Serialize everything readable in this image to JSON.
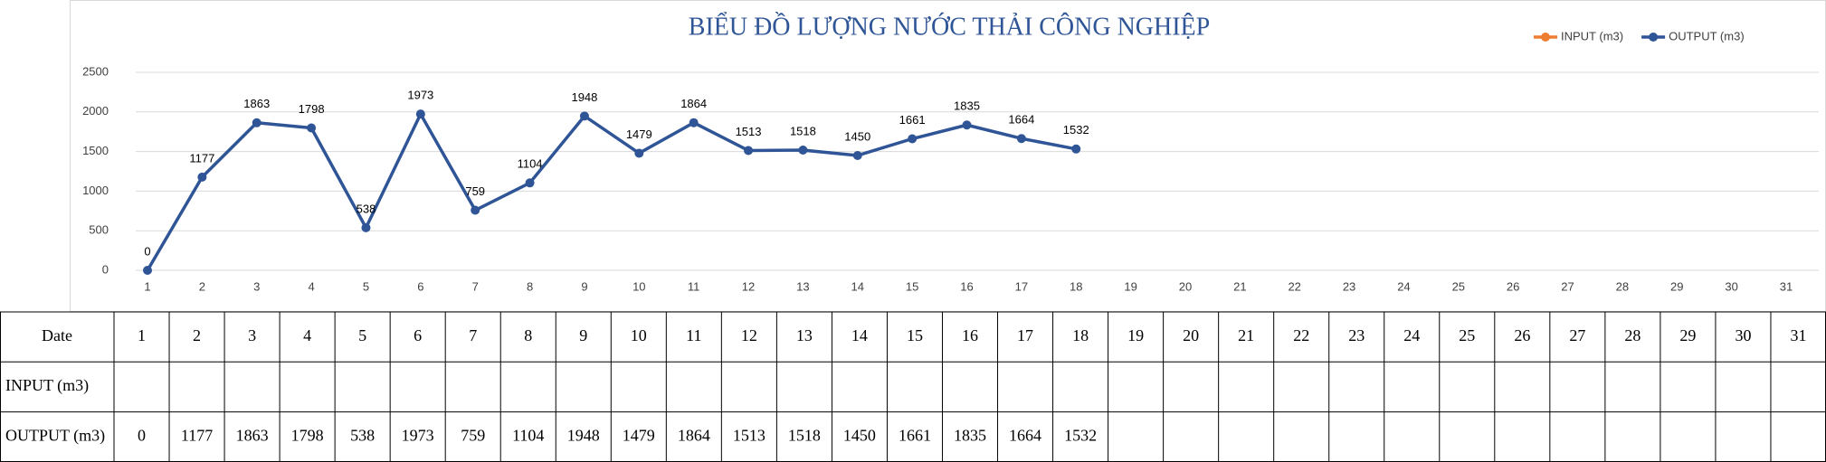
{
  "table_header": "Date",
  "chart_data": {
    "type": "line",
    "title": "BIỂU ĐỒ LƯỢNG NƯỚC THẢI CÔNG NGHIỆP",
    "categories": [
      1,
      2,
      3,
      4,
      5,
      6,
      7,
      8,
      9,
      10,
      11,
      12,
      13,
      14,
      15,
      16,
      17,
      18,
      19,
      20,
      21,
      22,
      23,
      24,
      25,
      26,
      27,
      28,
      29,
      30,
      31
    ],
    "series": [
      {
        "name": "INPUT (m3)",
        "color": "#ed7d31",
        "values": [
          null,
          null,
          null,
          null,
          null,
          null,
          null,
          null,
          null,
          null,
          null,
          null,
          null,
          null,
          null,
          null,
          null,
          null,
          null,
          null,
          null,
          null,
          null,
          null,
          null,
          null,
          null,
          null,
          null,
          null,
          null
        ]
      },
      {
        "name": "OUTPUT (m3)",
        "color": "#2f5597",
        "values": [
          0,
          1177,
          1863,
          1798,
          538,
          1973,
          759,
          1104,
          1948,
          1479,
          1864,
          1513,
          1518,
          1450,
          1661,
          1835,
          1664,
          1532,
          null,
          null,
          null,
          null,
          null,
          null,
          null,
          null,
          null,
          null,
          null,
          null,
          null
        ]
      }
    ],
    "ylim": [
      0,
      2500
    ],
    "yticks": [
      0,
      500,
      1000,
      1500,
      2000,
      2500
    ],
    "grid": true,
    "legend": "top-right"
  }
}
